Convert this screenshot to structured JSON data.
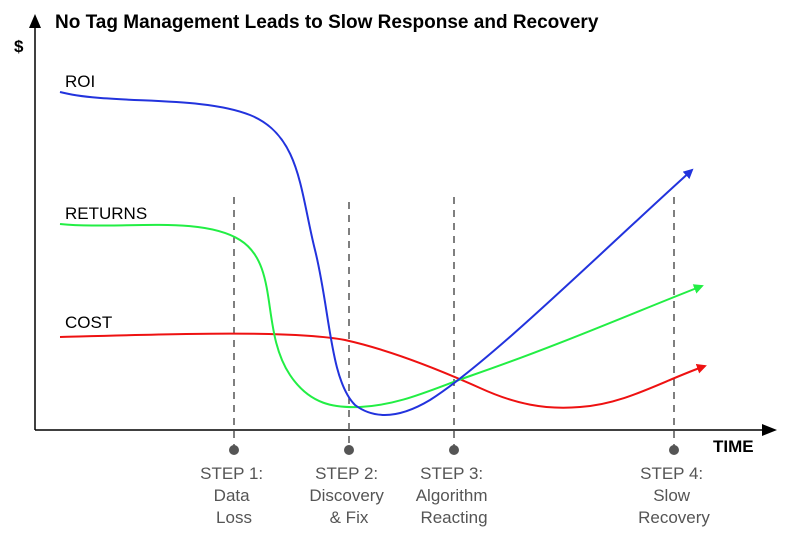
{
  "title": "No Tag Management Leads to Slow Response and Recovery",
  "axes": {
    "y_label": "$",
    "x_label": "TIME"
  },
  "series": [
    {
      "id": "roi",
      "name": "ROI",
      "color": "#2233dd"
    },
    {
      "id": "returns",
      "name": "RETURNS",
      "color": "#22ee44"
    },
    {
      "id": "cost",
      "name": "COST",
      "color": "#ee1111"
    }
  ],
  "steps": [
    {
      "id": "step-1",
      "lines": [
        "STEP 1:",
        "Data",
        "Loss"
      ]
    },
    {
      "id": "step-2",
      "lines": [
        "STEP 2:",
        "Discovery",
        "& Fix"
      ]
    },
    {
      "id": "step-3",
      "lines": [
        "STEP 3:",
        "Algorithm",
        "Reacting"
      ]
    },
    {
      "id": "step-4",
      "lines": [
        "STEP 4:",
        "Slow",
        "Recovery"
      ]
    }
  ],
  "colors": {
    "axis": "#000000",
    "step_marker": "#555555"
  }
}
